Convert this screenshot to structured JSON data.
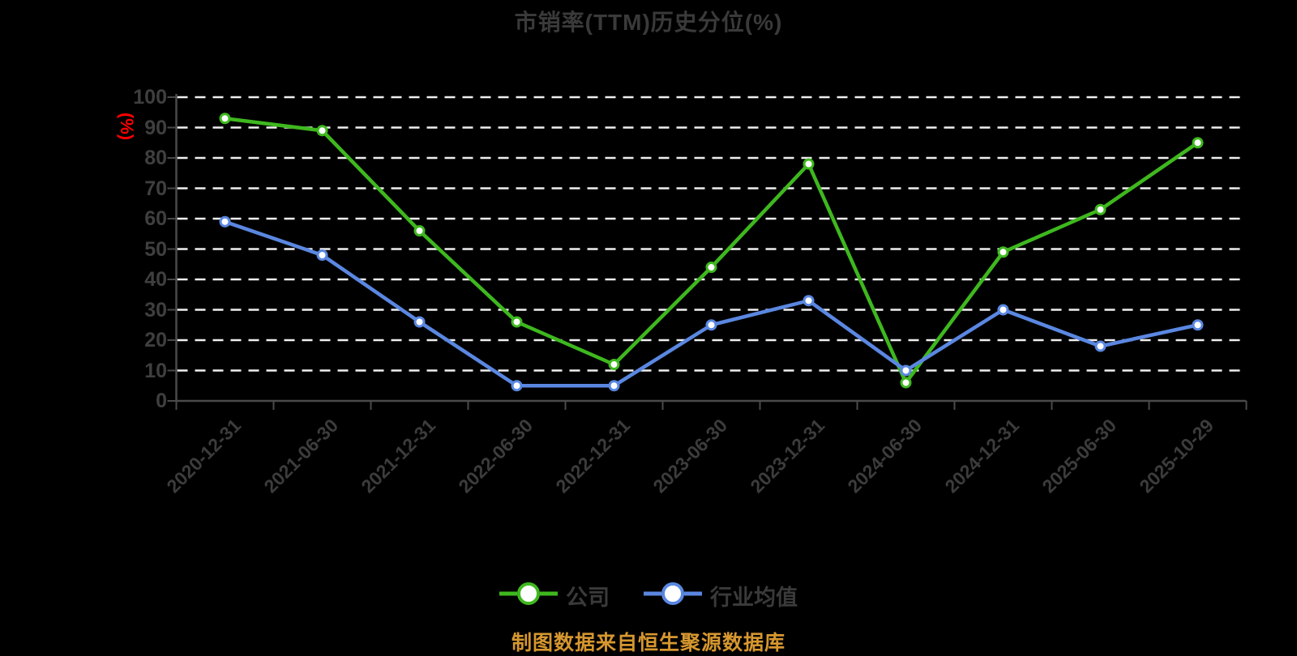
{
  "page": {
    "background": "#000000"
  },
  "title": {
    "text": "市销率(TTM)历史分位(%)",
    "color": "#3a3a3a"
  },
  "y_axis": {
    "unit": "(%)",
    "unit_color": "#ff0000",
    "tick_labels": [
      "0",
      "10",
      "20",
      "30",
      "40",
      "50",
      "60",
      "70",
      "80",
      "90",
      "100"
    ],
    "label_color": "#3f3f3f"
  },
  "legend": {
    "items": [
      {
        "label": "公司",
        "color": "#3eb81e"
      },
      {
        "label": "行业均值",
        "color": "#5a87e1"
      }
    ]
  },
  "footer": {
    "text": "制图数据来自恒生聚源数据库",
    "color": "#d6972f"
  },
  "chart_data": {
    "type": "line",
    "title": "市销率(TTM)历史分位(%)",
    "categories": [
      "2020-12-31",
      "2021-06-30",
      "2021-12-31",
      "2022-06-30",
      "2022-12-31",
      "2023-06-30",
      "2023-12-31",
      "2024-06-30",
      "2024-12-31",
      "2025-06-30",
      "2025-10-29"
    ],
    "series": [
      {
        "name": "公司",
        "color": "#3eb81e",
        "marker_fill": "#ffffff",
        "values": [
          93,
          89,
          56,
          26,
          12,
          44,
          78,
          6,
          49,
          63,
          85
        ]
      },
      {
        "name": "行业均值",
        "color": "#5a87e1",
        "marker_fill": "#ffffff",
        "values": [
          59,
          48,
          26,
          5,
          5,
          25,
          33,
          10,
          30,
          18,
          25
        ]
      }
    ],
    "xlabel": "",
    "ylabel": "(%)",
    "ylim": [
      0,
      100
    ],
    "y_tick_step": 10,
    "grid": {
      "show": true,
      "style": "dashed",
      "color": "#efefef"
    },
    "axis_color": "#4a4a4a",
    "legend_position": "bottom",
    "x_label_rotation_deg": 45
  }
}
